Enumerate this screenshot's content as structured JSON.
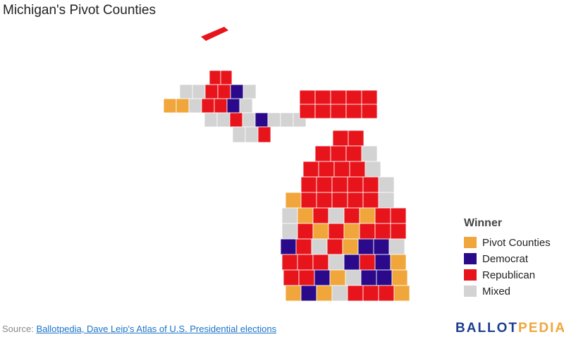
{
  "title": "Michigan's Pivot Counties",
  "legend": {
    "title": "Winner",
    "items": [
      {
        "label": "Pivot Counties",
        "color": "#f0a63b"
      },
      {
        "label": "Democrat",
        "color": "#2a0a8a"
      },
      {
        "label": "Republican",
        "color": "#e8141b"
      },
      {
        "label": "Mixed",
        "color": "#d3d3d3"
      }
    ]
  },
  "source": {
    "label": "Source:",
    "link": "Ballotpedia, Dave Leip's Atlas of U.S. Presidential elections"
  },
  "logo": {
    "part1": "BALLOT",
    "part2": "PEDIA"
  }
}
